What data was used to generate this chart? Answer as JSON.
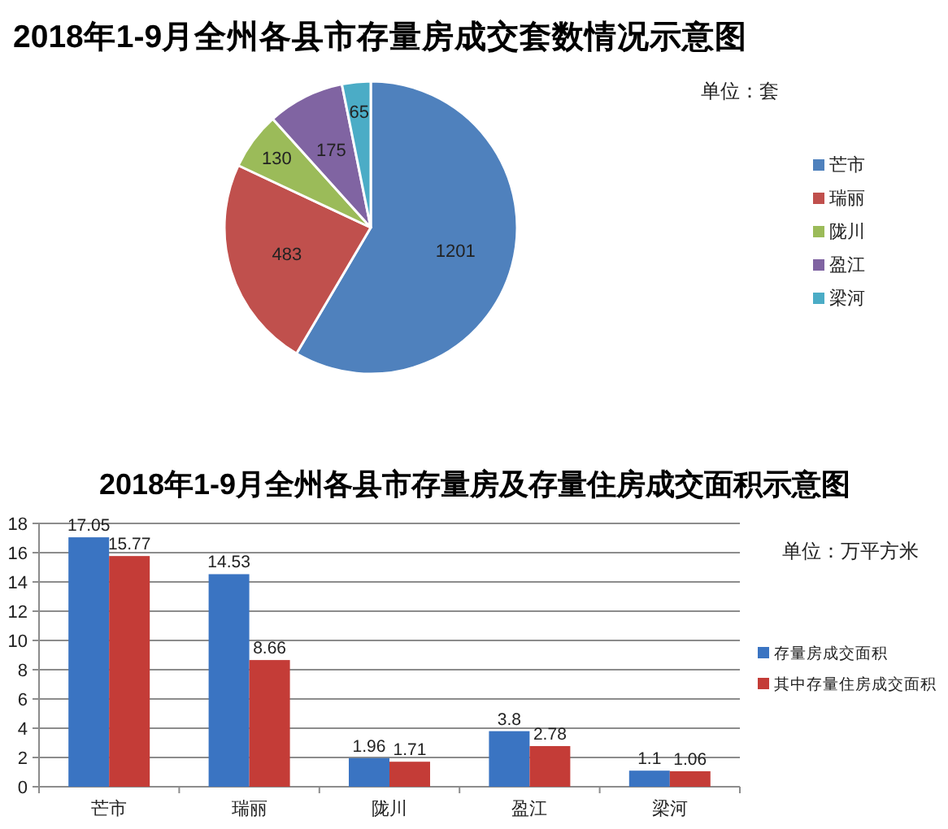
{
  "chart_data": [
    {
      "type": "pie",
      "title": "2018年1-9月全州各县市存量房成交套数情况示意图",
      "categories": [
        "芒市",
        "瑞丽",
        "陇川",
        "盈江",
        "梁河"
      ],
      "values": [
        1201,
        483,
        130,
        175,
        65
      ],
      "colors": [
        "#4f81bd",
        "#c0504d",
        "#9bbb59",
        "#8064a2",
        "#4bacc6"
      ],
      "data_labels": true,
      "legend": "right",
      "annotations": [
        "单位：套"
      ]
    },
    {
      "type": "bar",
      "title": "2018年1-9月全州各县市存量房及存量住房成交面积示意图",
      "categories": [
        "芒市",
        "瑞丽",
        "陇川",
        "盈江",
        "梁河"
      ],
      "series": [
        {
          "name": "存量房成交面积",
          "color": "#3a74c2",
          "values": [
            17.05,
            14.53,
            1.96,
            3.8,
            1.1
          ]
        },
        {
          "name": "其中存量住房成交面积",
          "color": "#c43c37",
          "values": [
            15.77,
            8.66,
            1.71,
            2.78,
            1.06
          ]
        }
      ],
      "ylim": [
        0,
        18
      ],
      "yticks": [
        0,
        2,
        4,
        6,
        8,
        10,
        12,
        14,
        16,
        18
      ],
      "grid": "y",
      "data_labels": true,
      "legend": "right",
      "annotations": [
        "单位：万平方米"
      ]
    }
  ]
}
